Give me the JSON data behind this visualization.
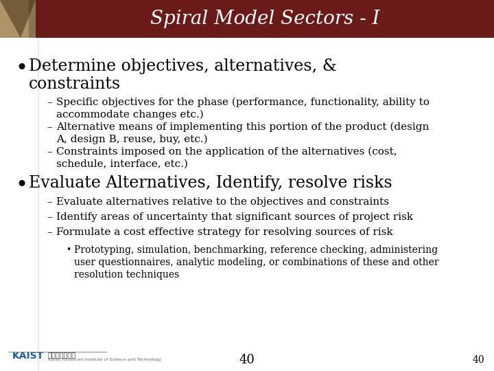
{
  "title": "Spiral Model Sectors - I",
  "title_bg_color": "#6B1A1A",
  "title_text_color": "#FFFFFF",
  "bg_color": "#FFFFFF",
  "corner_img_color1": "#8B7355",
  "corner_img_color2": "#C8A870",
  "bullet1_line1": "Determine objectives, alternatives, &",
  "bullet1_line2": "constraints",
  "bullet1_sub": [
    "Specific objectives for the phase (performance, functionality, ability to\naccommodate changes etc.)",
    "Alternative means of implementing this portion of the product (design\nA, design B, reuse, buy, etc.)",
    "Constraints imposed on the application of the alternatives (cost,\nschedule, interface, etc.)"
  ],
  "bullet2_header": "Evaluate Alternatives, Identify, resolve risks",
  "bullet2_sub": [
    "Evaluate alternatives relative to the objectives and constraints",
    "Identify areas of uncertainty that significant sources of project risk",
    "Formulate a cost effective strategy for resolving sources of risk"
  ],
  "bullet2_sub2": "Prototyping, simulation, benchmarking, reference checking, administering\nuser questionnaires, analytic modeling, or combinations of these and other\nresolution techniques",
  "page_number": "40",
  "title_fontsize": 20,
  "bullet_major_fontsize": 17,
  "bullet_minor_fontsize": 11,
  "bullet_sub2_fontsize": 10,
  "page_num_fontsize": 13
}
